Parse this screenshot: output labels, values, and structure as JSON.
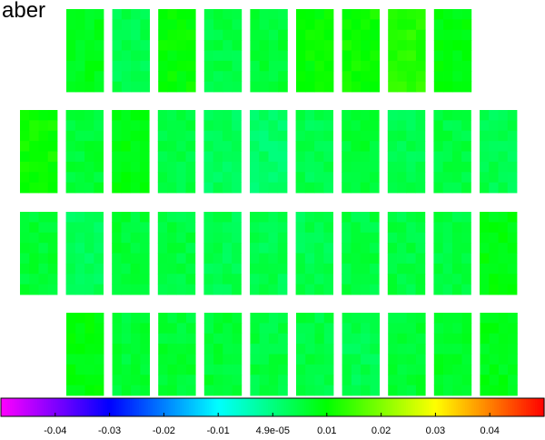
{
  "chart_data": {
    "type": "heatmap",
    "title": "aber",
    "colormap": "rainbow (magenta-blue-cyan-green-yellow-red)",
    "colorbar": {
      "range": [
        -0.05,
        0.05
      ],
      "ticks": [
        {
          "value": -0.04,
          "label": "-0.04"
        },
        {
          "value": -0.03,
          "label": "-0.03"
        },
        {
          "value": -0.02,
          "label": "-0.02"
        },
        {
          "value": -0.01,
          "label": "-0.01"
        },
        {
          "value": 4.9e-05,
          "label": "4.9e-05"
        },
        {
          "value": 0.01,
          "label": "0.01"
        },
        {
          "value": 0.02,
          "label": "0.02"
        },
        {
          "value": 0.03,
          "label": "0.03"
        },
        {
          "value": 0.04,
          "label": "0.04"
        }
      ]
    },
    "panel_rows": [
      {
        "panels": [
          0.008,
          0.004,
          0.01,
          0.005,
          0.006,
          0.01,
          0.011,
          0.013,
          0.009
        ]
      },
      {
        "panels": [
          0.011,
          0.006,
          0.009,
          0.005,
          0.003,
          0.002,
          0.004,
          0.006,
          0.004,
          0.005,
          0.004
        ]
      },
      {
        "panels": [
          0.006,
          0.003,
          0.006,
          0.005,
          0.004,
          0.004,
          0.004,
          0.005,
          0.005,
          0.005,
          0.009
        ]
      },
      {
        "panels": [
          0.009,
          0.006,
          0.006,
          0.006,
          0.005,
          0.005,
          0.004,
          0.006,
          0.007,
          0.008
        ]
      }
    ]
  }
}
